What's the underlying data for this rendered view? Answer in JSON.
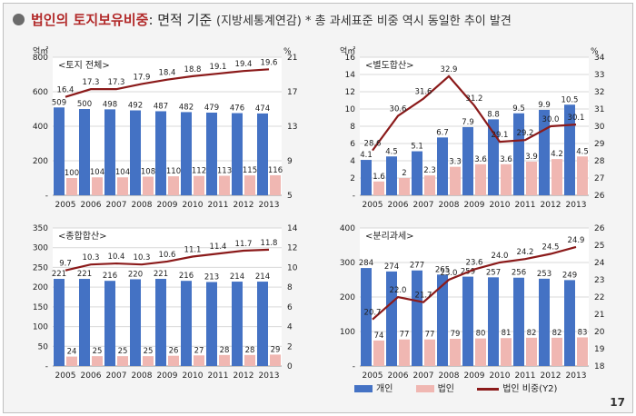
{
  "header": {
    "title_highlight": "법인의 토지보유비중",
    "title_rest": ": 면적 기준 ",
    "source_note": "(지방세통계연감)",
    "trend_note": " * 총 과세표준 비중 역시 동일한 추이 발견"
  },
  "colors": {
    "individual": "#4472c4",
    "corporation": "#f0b7b2",
    "share_line": "#8b1a1a",
    "bullet": "#6b6b6b"
  },
  "legend": {
    "individual": "개인",
    "corporation": "법인",
    "share": "법인 비중(Y2)"
  },
  "page_number": "17",
  "chart_data": [
    {
      "type": "bar",
      "panel_title": "<토지 전체>",
      "left_unit": "억㎡",
      "right_unit": "%",
      "categories": [
        "2005",
        "2006",
        "2007",
        "2008",
        "2009",
        "2010",
        "2011",
        "2012",
        "2013"
      ],
      "ylim": [
        0,
        800
      ],
      "yticks": [
        "-",
        "200",
        "400",
        "600",
        "800"
      ],
      "y2lim": [
        5,
        21
      ],
      "y2ticks": [
        "5",
        "9",
        "13",
        "17",
        "21"
      ],
      "series": [
        {
          "name": "개인",
          "axis": "y",
          "values": [
            509,
            500,
            498,
            492,
            487,
            482,
            479,
            476,
            474
          ]
        },
        {
          "name": "법인",
          "axis": "y",
          "values": [
            100,
            104,
            104,
            108,
            110,
            112,
            113,
            115,
            116
          ]
        },
        {
          "name": "법인 비중(Y2)",
          "axis": "y2",
          "values": [
            16.4,
            17.3,
            17.3,
            17.9,
            18.4,
            18.8,
            19.1,
            19.4,
            19.6
          ]
        }
      ]
    },
    {
      "type": "bar",
      "panel_title": "<별도합산>",
      "left_unit": "억㎡",
      "right_unit": "%",
      "categories": [
        "2005",
        "2006",
        "2007",
        "2008",
        "2009",
        "2010",
        "2011",
        "2012",
        "2013"
      ],
      "ylim": [
        0,
        16
      ],
      "yticks": [
        "-",
        "2",
        "4",
        "6",
        "8",
        "10",
        "12",
        "14",
        "16"
      ],
      "y2lim": [
        26,
        34
      ],
      "y2ticks": [
        "26",
        "27",
        "28",
        "29",
        "30",
        "31",
        "32",
        "33",
        "34"
      ],
      "series": [
        {
          "name": "개인",
          "axis": "y",
          "values": [
            4.1,
            4.5,
            5.1,
            6.7,
            7.9,
            8.8,
            9.5,
            9.9,
            10.5
          ]
        },
        {
          "name": "법인",
          "axis": "y",
          "values": [
            1.6,
            2.0,
            2.3,
            3.3,
            3.6,
            3.6,
            3.9,
            4.2,
            4.5
          ]
        },
        {
          "name": "법인 비중(Y2)",
          "axis": "y2",
          "values": [
            28.6,
            30.6,
            31.6,
            32.9,
            31.2,
            29.1,
            29.2,
            30.0,
            30.1
          ]
        }
      ]
    },
    {
      "type": "bar",
      "panel_title": "<종합합산>",
      "left_unit": "",
      "right_unit": "",
      "categories": [
        "2005",
        "2006",
        "2007",
        "2008",
        "2009",
        "2010",
        "2011",
        "2012",
        "2013"
      ],
      "ylim": [
        0,
        350
      ],
      "yticks": [
        "-",
        "50",
        "100",
        "150",
        "200",
        "250",
        "300",
        "350"
      ],
      "y2lim": [
        0,
        14
      ],
      "y2ticks": [
        "0",
        "2",
        "4",
        "6",
        "8",
        "10",
        "12",
        "14"
      ],
      "series": [
        {
          "name": "개인",
          "axis": "y",
          "values": [
            221,
            221,
            216,
            220,
            221,
            216,
            213,
            214,
            214
          ]
        },
        {
          "name": "법인",
          "axis": "y",
          "values": [
            24,
            25,
            25,
            25,
            26,
            27,
            28,
            28,
            29
          ]
        },
        {
          "name": "법인 비중(Y2)",
          "axis": "y2",
          "values": [
            9.7,
            10.3,
            10.4,
            10.3,
            10.6,
            11.1,
            11.4,
            11.7,
            11.8
          ]
        }
      ]
    },
    {
      "type": "bar",
      "panel_title": "<분리과세>",
      "left_unit": "",
      "right_unit": "",
      "categories": [
        "2005",
        "2006",
        "2007",
        "2008",
        "2009",
        "2010",
        "2011",
        "2012",
        "2013"
      ],
      "ylim": [
        0,
        400
      ],
      "yticks": [
        "-",
        "100",
        "200",
        "300",
        "400"
      ],
      "y2lim": [
        18,
        26
      ],
      "y2ticks": [
        "18",
        "19",
        "20",
        "21",
        "22",
        "23",
        "24",
        "25",
        "26"
      ],
      "series": [
        {
          "name": "개인",
          "axis": "y",
          "values": [
            284,
            274,
            277,
            265,
            259,
            257,
            256,
            253,
            249
          ]
        },
        {
          "name": "법인",
          "axis": "y",
          "values": [
            74,
            77,
            77,
            79,
            80,
            81,
            82,
            82,
            83
          ]
        },
        {
          "name": "법인 비중(Y2)",
          "axis": "y2",
          "values": [
            20.7,
            22.0,
            21.7,
            23.0,
            23.6,
            24.0,
            24.2,
            24.5,
            24.9
          ]
        }
      ]
    }
  ]
}
